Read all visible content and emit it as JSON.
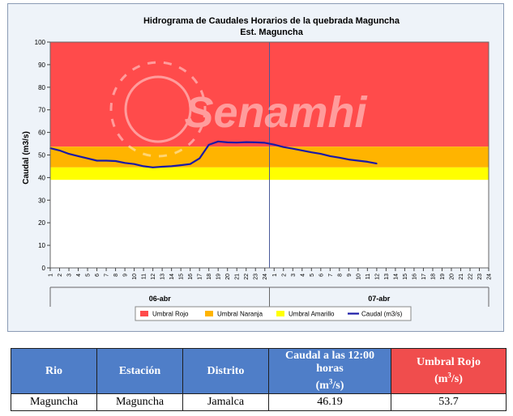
{
  "chart_data": {
    "type": "line",
    "title": "Hidrograma de Caudales Horarios de la quebrada Maguncha",
    "subtitle": "Est. Maguncha",
    "watermark": "Senamhi",
    "ylabel": "Caudal (m3/s)",
    "ylim": [
      0,
      100
    ],
    "yticks": [
      "0",
      "10",
      "20",
      "30",
      "40",
      "50",
      "60",
      "70",
      "80",
      "90",
      "100"
    ],
    "xticks": [
      "1",
      "2",
      "3",
      "4",
      "5",
      "6",
      "7",
      "8",
      "9",
      "10",
      "11",
      "12",
      "13",
      "14",
      "15",
      "16",
      "17",
      "18",
      "19",
      "20",
      "21",
      "22",
      "23",
      "24",
      "1",
      "2",
      "3",
      "4",
      "5",
      "6",
      "7",
      "8",
      "9",
      "10",
      "11",
      "12",
      "13",
      "14",
      "15",
      "16",
      "17",
      "18",
      "19",
      "20",
      "21",
      "22",
      "23",
      "24"
    ],
    "day_labels": [
      "06-abr",
      "07-abr"
    ],
    "grid": false,
    "legend_position": "bottom",
    "thresholds": [
      {
        "name": "Umbral Rojo",
        "from": 53.7,
        "to": 100,
        "color": "#ff4b4b"
      },
      {
        "name": "Umbral Naranja",
        "from": 44.5,
        "to": 53.7,
        "color": "#ffb400"
      },
      {
        "name": "Umbral Amarillo",
        "from": 39,
        "to": 44.5,
        "color": "#ffff00"
      }
    ],
    "series": [
      {
        "name": "Caudal (m3/s)",
        "color": "#1a1aa6",
        "values": [
          53.0,
          52.0,
          50.5,
          49.5,
          48.5,
          47.5,
          47.5,
          47.3,
          46.5,
          46.0,
          45.0,
          44.5,
          44.8,
          45.0,
          45.5,
          46.0,
          48.5,
          54.5,
          56.0,
          55.6,
          55.5,
          55.7,
          55.6,
          55.4,
          54.6,
          53.5,
          52.8,
          52.0,
          51.2,
          50.5,
          49.5,
          48.8,
          48.0,
          47.5,
          47.0,
          46.2
        ]
      }
    ]
  },
  "table": {
    "headers": [
      "Rio",
      "Estación",
      "Distrito",
      "Caudal a las 12:00 horas",
      "Umbral Rojo"
    ],
    "unit_prefix": "(m",
    "unit_exp": "3",
    "unit_suffix": "/s)",
    "row": [
      "Maguncha",
      "Maguncha",
      "Jamalca",
      "46.19",
      "53.7"
    ]
  }
}
